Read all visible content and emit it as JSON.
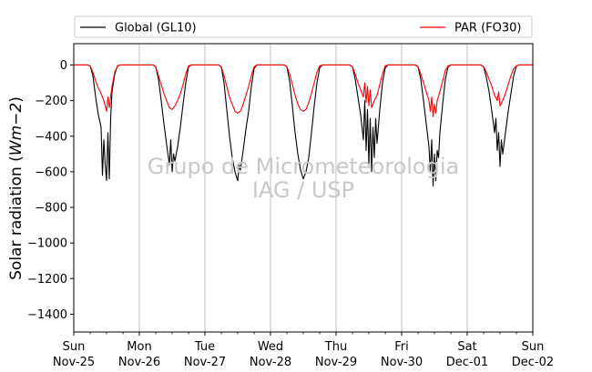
{
  "chart_data": {
    "type": "line",
    "ylabel_text": "Solar radiation (",
    "ylabel_unit": "Wm−2",
    "ylabel_close": ")",
    "ylim": [
      -1500,
      120
    ],
    "yticks": [
      0,
      -200,
      -400,
      -600,
      -800,
      -1000,
      -1200,
      -1400
    ],
    "ytick_labels": [
      "0",
      "−200",
      "−400",
      "−600",
      "−800",
      "−1000",
      "−1200",
      "−1400"
    ],
    "xlim": [
      "2018-11-25T00:00",
      "2018-12-02T00:00"
    ],
    "xticks": [
      {
        "x": "2018-11-25T00:00",
        "day": "Sun",
        "date": "Nov-25"
      },
      {
        "x": "2018-11-26T00:00",
        "day": "Mon",
        "date": "Nov-26"
      },
      {
        "x": "2018-11-27T00:00",
        "day": "Tue",
        "date": "Nov-27"
      },
      {
        "x": "2018-11-28T00:00",
        "day": "Wed",
        "date": "Nov-28"
      },
      {
        "x": "2018-11-29T00:00",
        "day": "Thu",
        "date": "Nov-29"
      },
      {
        "x": "2018-11-30T00:00",
        "day": "Fri",
        "date": "Nov-30"
      },
      {
        "x": "2018-12-01T00:00",
        "day": "Sat",
        "date": "Dec-01"
      },
      {
        "x": "2018-12-02T00:00",
        "day": "Sun",
        "date": "Dec-02"
      }
    ],
    "grid": "vertical",
    "legend_placement": "top, outside plot",
    "series": [
      {
        "name": "Global (GL10)",
        "color": "#000000",
        "points": [
          [
            "2018-11-25T00:00",
            0
          ],
          [
            "2018-11-25T05:00",
            0
          ],
          [
            "2018-11-25T06:00",
            -5
          ],
          [
            "2018-11-25T07:00",
            -60
          ],
          [
            "2018-11-25T08:00",
            -180
          ],
          [
            "2018-11-25T09:00",
            -280
          ],
          [
            "2018-11-25T10:00",
            -350
          ],
          [
            "2018-11-25T10:30",
            -620
          ],
          [
            "2018-11-25T11:00",
            -420
          ],
          [
            "2018-11-25T11:30",
            -560
          ],
          [
            "2018-11-25T12:00",
            -650
          ],
          [
            "2018-11-25T12:30",
            -380
          ],
          [
            "2018-11-25T13:00",
            -640
          ],
          [
            "2018-11-25T13:30",
            -300
          ],
          [
            "2018-11-25T14:00",
            -150
          ],
          [
            "2018-11-25T15:00",
            -50
          ],
          [
            "2018-11-25T16:00",
            -5
          ],
          [
            "2018-11-25T17:00",
            0
          ],
          [
            "2018-11-26T05:00",
            0
          ],
          [
            "2018-11-26T06:00",
            -10
          ],
          [
            "2018-11-26T07:00",
            -80
          ],
          [
            "2018-11-26T08:00",
            -200
          ],
          [
            "2018-11-26T09:00",
            -330
          ],
          [
            "2018-11-26T10:00",
            -450
          ],
          [
            "2018-11-26T11:00",
            -560
          ],
          [
            "2018-11-26T11:30",
            -420
          ],
          [
            "2018-11-26T12:00",
            -600
          ],
          [
            "2018-11-26T12:30",
            -500
          ],
          [
            "2018-11-26T13:00",
            -540
          ],
          [
            "2018-11-26T14:00",
            -460
          ],
          [
            "2018-11-26T15:00",
            -350
          ],
          [
            "2018-11-26T16:00",
            -220
          ],
          [
            "2018-11-26T17:00",
            -100
          ],
          [
            "2018-11-26T18:00",
            -10
          ],
          [
            "2018-11-26T19:00",
            0
          ],
          [
            "2018-11-27T05:00",
            0
          ],
          [
            "2018-11-27T06:00",
            -10
          ],
          [
            "2018-11-27T07:00",
            -100
          ],
          [
            "2018-11-27T08:00",
            -250
          ],
          [
            "2018-11-27T09:00",
            -400
          ],
          [
            "2018-11-27T10:00",
            -520
          ],
          [
            "2018-11-27T11:00",
            -600
          ],
          [
            "2018-11-27T12:00",
            -650
          ],
          [
            "2018-11-27T12:30",
            -560
          ],
          [
            "2018-11-27T13:00",
            -590
          ],
          [
            "2018-11-27T14:00",
            -480
          ],
          [
            "2018-11-27T15:00",
            -360
          ],
          [
            "2018-11-27T16:00",
            -260
          ],
          [
            "2018-11-27T17:00",
            -120
          ],
          [
            "2018-11-27T18:00",
            -20
          ],
          [
            "2018-11-27T19:00",
            0
          ],
          [
            "2018-11-28T05:00",
            0
          ],
          [
            "2018-11-28T06:00",
            -10
          ],
          [
            "2018-11-28T07:00",
            -90
          ],
          [
            "2018-11-28T08:00",
            -230
          ],
          [
            "2018-11-28T09:00",
            -380
          ],
          [
            "2018-11-28T10:00",
            -500
          ],
          [
            "2018-11-28T11:00",
            -590
          ],
          [
            "2018-11-28T12:00",
            -640
          ],
          [
            "2018-11-28T13:00",
            -600
          ],
          [
            "2018-11-28T14:00",
            -520
          ],
          [
            "2018-11-28T15:00",
            -380
          ],
          [
            "2018-11-28T16:00",
            -230
          ],
          [
            "2018-11-28T17:00",
            -100
          ],
          [
            "2018-11-28T18:00",
            -15
          ],
          [
            "2018-11-28T19:00",
            0
          ],
          [
            "2018-11-29T05:00",
            0
          ],
          [
            "2018-11-29T06:00",
            -10
          ],
          [
            "2018-11-29T07:00",
            -80
          ],
          [
            "2018-11-29T08:00",
            -180
          ],
          [
            "2018-11-29T09:00",
            -280
          ],
          [
            "2018-11-29T10:00",
            -420
          ],
          [
            "2018-11-29T10:30",
            -200
          ],
          [
            "2018-11-29T11:00",
            -480
          ],
          [
            "2018-11-29T11:30",
            -250
          ],
          [
            "2018-11-29T12:00",
            -560
          ],
          [
            "2018-11-29T12:30",
            -300
          ],
          [
            "2018-11-29T13:00",
            -600
          ],
          [
            "2018-11-29T13:30",
            -350
          ],
          [
            "2018-11-29T14:00",
            -520
          ],
          [
            "2018-11-29T14:30",
            -300
          ],
          [
            "2018-11-29T15:00",
            -440
          ],
          [
            "2018-11-29T16:00",
            -250
          ],
          [
            "2018-11-29T17:00",
            -100
          ],
          [
            "2018-11-29T18:00",
            -15
          ],
          [
            "2018-11-29T19:00",
            0
          ],
          [
            "2018-11-30T05:00",
            0
          ],
          [
            "2018-11-30T06:00",
            -10
          ],
          [
            "2018-11-30T07:00",
            -80
          ],
          [
            "2018-11-30T08:00",
            -200
          ],
          [
            "2018-11-30T09:00",
            -330
          ],
          [
            "2018-11-30T10:00",
            -460
          ],
          [
            "2018-11-30T10:30",
            -600
          ],
          [
            "2018-11-30T11:00",
            -420
          ],
          [
            "2018-11-30T11:30",
            -680
          ],
          [
            "2018-11-30T12:00",
            -500
          ],
          [
            "2018-11-30T12:30",
            -650
          ],
          [
            "2018-11-30T13:00",
            -480
          ],
          [
            "2018-11-30T13:30",
            -520
          ],
          [
            "2018-11-30T14:00",
            -380
          ],
          [
            "2018-11-30T15:00",
            -220
          ],
          [
            "2018-11-30T16:00",
            -80
          ],
          [
            "2018-11-30T17:00",
            -10
          ],
          [
            "2018-11-30T18:00",
            0
          ],
          [
            "2018-12-01T05:00",
            0
          ],
          [
            "2018-12-01T06:00",
            -10
          ],
          [
            "2018-12-01T07:00",
            -70
          ],
          [
            "2018-12-01T08:00",
            -150
          ],
          [
            "2018-12-01T09:00",
            -260
          ],
          [
            "2018-12-01T10:00",
            -380
          ],
          [
            "2018-12-01T10:30",
            -300
          ],
          [
            "2018-12-01T11:00",
            -480
          ],
          [
            "2018-12-01T11:30",
            -380
          ],
          [
            "2018-12-01T12:00",
            -570
          ],
          [
            "2018-12-01T12:30",
            -420
          ],
          [
            "2018-12-01T13:00",
            -500
          ],
          [
            "2018-12-01T14:00",
            -380
          ],
          [
            "2018-12-01T15:00",
            -260
          ],
          [
            "2018-12-01T16:00",
            -160
          ],
          [
            "2018-12-01T17:00",
            -60
          ],
          [
            "2018-12-01T18:00",
            -5
          ],
          [
            "2018-12-01T19:00",
            0
          ],
          [
            "2018-12-02T00:00",
            0
          ]
        ]
      },
      {
        "name": "PAR (FO30)",
        "color": "#ff0000",
        "points": [
          [
            "2018-11-25T00:00",
            0
          ],
          [
            "2018-11-25T05:00",
            0
          ],
          [
            "2018-11-25T06:00",
            -5
          ],
          [
            "2018-11-25T07:00",
            -40
          ],
          [
            "2018-11-25T08:00",
            -90
          ],
          [
            "2018-11-25T09:00",
            -130
          ],
          [
            "2018-11-25T10:00",
            -160
          ],
          [
            "2018-11-25T11:00",
            -200
          ],
          [
            "2018-11-25T12:00",
            -260
          ],
          [
            "2018-11-25T12:30",
            -180
          ],
          [
            "2018-11-25T13:00",
            -240
          ],
          [
            "2018-11-25T14:00",
            -120
          ],
          [
            "2018-11-25T15:00",
            -40
          ],
          [
            "2018-11-25T16:00",
            -5
          ],
          [
            "2018-11-25T17:00",
            0
          ],
          [
            "2018-11-26T05:00",
            0
          ],
          [
            "2018-11-26T06:00",
            -10
          ],
          [
            "2018-11-26T07:00",
            -60
          ],
          [
            "2018-11-26T08:00",
            -110
          ],
          [
            "2018-11-26T09:00",
            -160
          ],
          [
            "2018-11-26T10:00",
            -200
          ],
          [
            "2018-11-26T11:00",
            -240
          ],
          [
            "2018-11-26T12:00",
            -250
          ],
          [
            "2018-11-26T13:00",
            -230
          ],
          [
            "2018-11-26T14:00",
            -200
          ],
          [
            "2018-11-26T15:00",
            -160
          ],
          [
            "2018-11-26T16:00",
            -110
          ],
          [
            "2018-11-26T17:00",
            -50
          ],
          [
            "2018-11-26T18:00",
            -5
          ],
          [
            "2018-11-26T19:00",
            0
          ],
          [
            "2018-11-27T05:00",
            0
          ],
          [
            "2018-11-27T06:00",
            -10
          ],
          [
            "2018-11-27T07:00",
            -60
          ],
          [
            "2018-11-27T08:00",
            -120
          ],
          [
            "2018-11-27T09:00",
            -180
          ],
          [
            "2018-11-27T10:00",
            -220
          ],
          [
            "2018-11-27T11:00",
            -260
          ],
          [
            "2018-11-27T12:00",
            -270
          ],
          [
            "2018-11-27T13:00",
            -260
          ],
          [
            "2018-11-27T14:00",
            -220
          ],
          [
            "2018-11-27T15:00",
            -170
          ],
          [
            "2018-11-27T16:00",
            -120
          ],
          [
            "2018-11-27T17:00",
            -60
          ],
          [
            "2018-11-27T18:00",
            -10
          ],
          [
            "2018-11-27T19:00",
            0
          ],
          [
            "2018-11-28T05:00",
            0
          ],
          [
            "2018-11-28T06:00",
            -10
          ],
          [
            "2018-11-28T07:00",
            -50
          ],
          [
            "2018-11-28T08:00",
            -110
          ],
          [
            "2018-11-28T09:00",
            -170
          ],
          [
            "2018-11-28T10:00",
            -220
          ],
          [
            "2018-11-28T11:00",
            -250
          ],
          [
            "2018-11-28T12:00",
            -260
          ],
          [
            "2018-11-28T13:00",
            -250
          ],
          [
            "2018-11-28T14:00",
            -210
          ],
          [
            "2018-11-28T15:00",
            -160
          ],
          [
            "2018-11-28T16:00",
            -100
          ],
          [
            "2018-11-28T17:00",
            -40
          ],
          [
            "2018-11-28T18:00",
            -5
          ],
          [
            "2018-11-28T19:00",
            0
          ],
          [
            "2018-11-29T05:00",
            0
          ],
          [
            "2018-11-29T06:00",
            -10
          ],
          [
            "2018-11-29T07:00",
            -50
          ],
          [
            "2018-11-29T08:00",
            -100
          ],
          [
            "2018-11-29T09:00",
            -140
          ],
          [
            "2018-11-29T10:00",
            -180
          ],
          [
            "2018-11-29T10:30",
            -100
          ],
          [
            "2018-11-29T11:00",
            -210
          ],
          [
            "2018-11-29T11:30",
            -120
          ],
          [
            "2018-11-29T12:00",
            -230
          ],
          [
            "2018-11-29T12:30",
            -140
          ],
          [
            "2018-11-29T13:00",
            -240
          ],
          [
            "2018-11-29T14:00",
            -200
          ],
          [
            "2018-11-29T15:00",
            -170
          ],
          [
            "2018-11-29T16:00",
            -110
          ],
          [
            "2018-11-29T17:00",
            -50
          ],
          [
            "2018-11-29T18:00",
            -5
          ],
          [
            "2018-11-29T19:00",
            0
          ],
          [
            "2018-11-30T05:00",
            0
          ],
          [
            "2018-11-30T06:00",
            -10
          ],
          [
            "2018-11-30T07:00",
            -50
          ],
          [
            "2018-11-30T08:00",
            -100
          ],
          [
            "2018-11-30T09:00",
            -150
          ],
          [
            "2018-11-30T10:00",
            -200
          ],
          [
            "2018-11-30T10:30",
            -260
          ],
          [
            "2018-11-30T11:00",
            -180
          ],
          [
            "2018-11-30T11:30",
            -290
          ],
          [
            "2018-11-30T12:00",
            -220
          ],
          [
            "2018-11-30T12:30",
            -270
          ],
          [
            "2018-11-30T13:00",
            -200
          ],
          [
            "2018-11-30T14:00",
            -150
          ],
          [
            "2018-11-30T15:00",
            -90
          ],
          [
            "2018-11-30T16:00",
            -30
          ],
          [
            "2018-11-30T17:00",
            -5
          ],
          [
            "2018-11-30T18:00",
            0
          ],
          [
            "2018-12-01T05:00",
            0
          ],
          [
            "2018-12-01T06:00",
            -10
          ],
          [
            "2018-12-01T07:00",
            -40
          ],
          [
            "2018-12-01T08:00",
            -80
          ],
          [
            "2018-12-01T09:00",
            -120
          ],
          [
            "2018-12-01T10:00",
            -170
          ],
          [
            "2018-12-01T11:00",
            -200
          ],
          [
            "2018-12-01T11:30",
            -150
          ],
          [
            "2018-12-01T12:00",
            -230
          ],
          [
            "2018-12-01T13:00",
            -200
          ],
          [
            "2018-12-01T14:00",
            -160
          ],
          [
            "2018-12-01T15:00",
            -110
          ],
          [
            "2018-12-01T16:00",
            -60
          ],
          [
            "2018-12-01T17:00",
            -20
          ],
          [
            "2018-12-01T18:00",
            -5
          ],
          [
            "2018-12-01T19:00",
            0
          ],
          [
            "2018-12-02T00:00",
            0
          ]
        ]
      }
    ],
    "watermark": [
      "Grupo de Micrometeorologia",
      "IAG / USP"
    ]
  }
}
